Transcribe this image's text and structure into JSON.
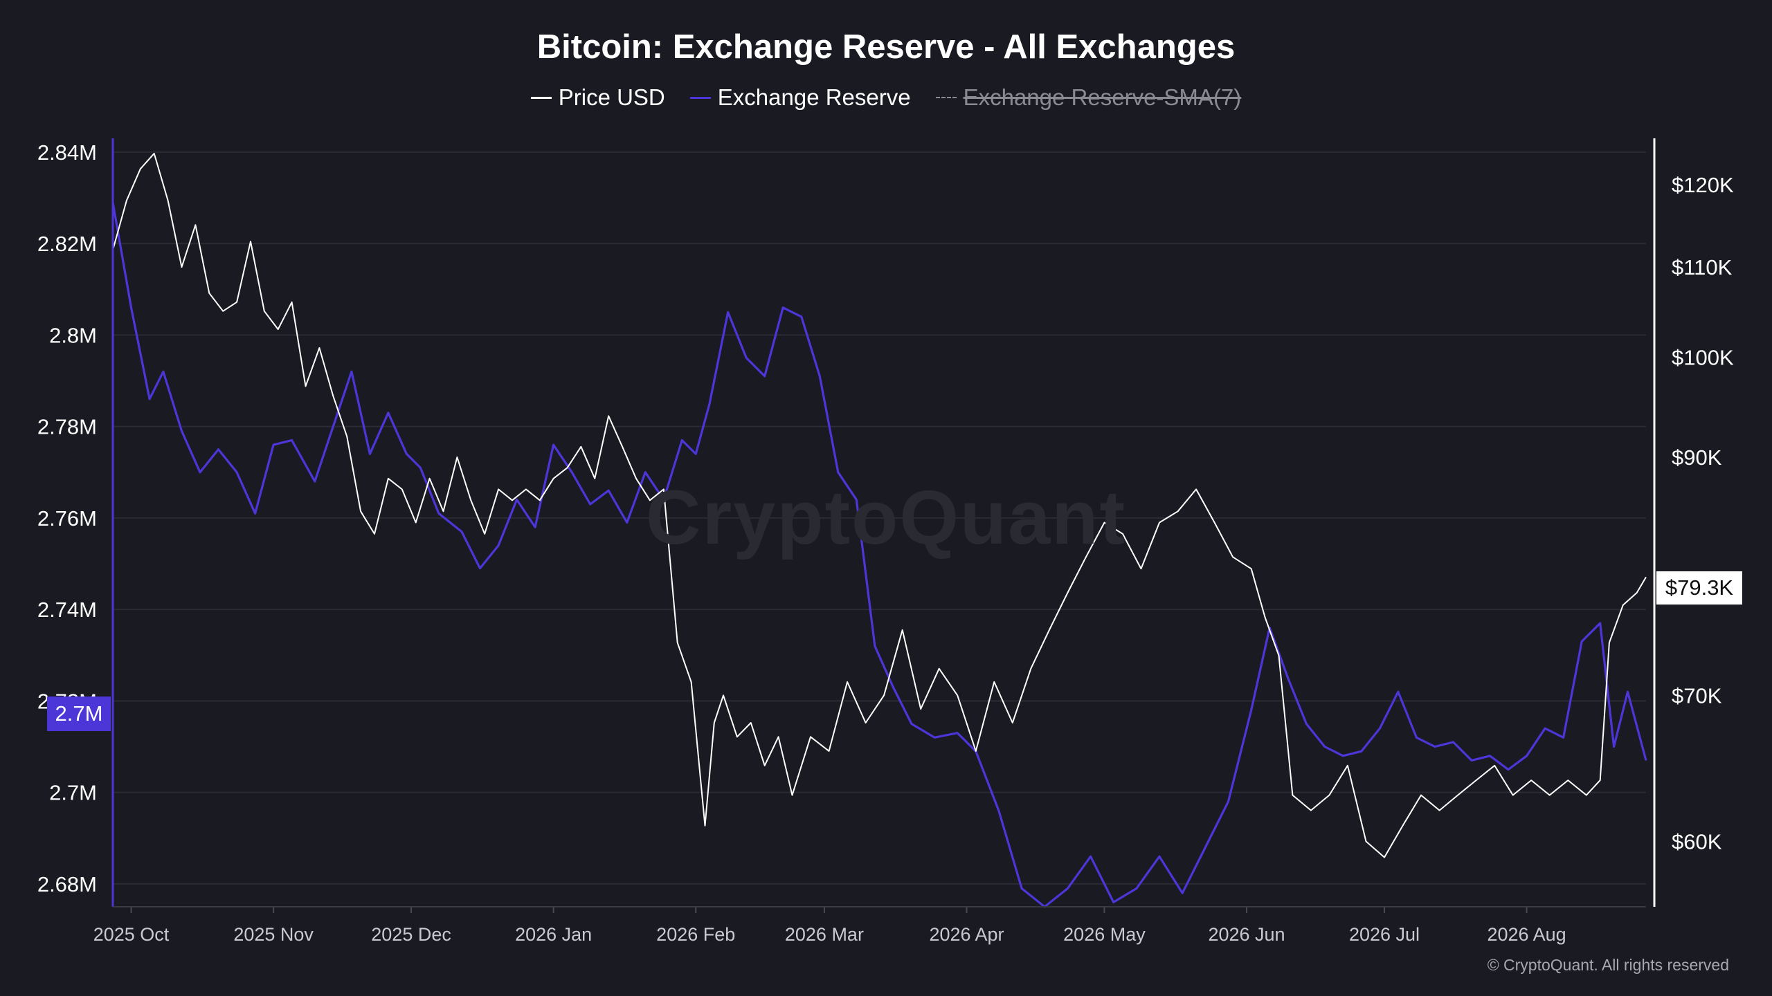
{
  "chart_data": {
    "type": "line",
    "title": "Bitcoin: Exchange Reserve - All Exchanges",
    "legend": [
      {
        "name": "Price USD",
        "color": "#ffffff",
        "active": true
      },
      {
        "name": "Exchange Reserve",
        "color": "#4c36d8",
        "active": true
      },
      {
        "name": "Exchange Reserve-SMA(7)",
        "color": "#8a8a94",
        "active": false
      }
    ],
    "x_tick_labels": [
      "2025 Oct",
      "2025 Nov",
      "2025 Dec",
      "2026 Jan",
      "2026 Feb",
      "2026 Mar",
      "2026 Apr",
      "2026 May",
      "2026 Jun",
      "2026 Jul",
      "2026 Aug"
    ],
    "x_range": [
      "2025-09-27",
      "2026-08-27"
    ],
    "y_left": {
      "tick_values": [
        2680000,
        2700000,
        2720000,
        2740000,
        2760000,
        2780000,
        2800000,
        2820000,
        2840000
      ],
      "tick_labels": [
        "2.68M",
        "2.7M",
        "2.72M",
        "2.74M",
        "2.76M",
        "2.78M",
        "2.8M",
        "2.82M",
        "2.84M"
      ],
      "range": [
        2675000,
        2843000
      ],
      "current_label": "2.7M"
    },
    "y_right": {
      "tick_values": [
        60000,
        70000,
        90000,
        100000,
        110000,
        120000
      ],
      "tick_labels": [
        "$60K",
        "$70K",
        "$90K",
        "$100K",
        "$110K",
        "$120K"
      ],
      "scale": "log",
      "range": [
        56000,
        126000
      ],
      "current_label": "$79.3K"
    },
    "series": [
      {
        "name": "Exchange Reserve",
        "axis": "left",
        "color": "#4c36d8",
        "x": [
          "2025-09-27",
          "2025-10-01",
          "2025-10-05",
          "2025-10-08",
          "2025-10-12",
          "2025-10-16",
          "2025-10-20",
          "2025-10-24",
          "2025-10-28",
          "2025-11-01",
          "2025-11-05",
          "2025-11-10",
          "2025-11-14",
          "2025-11-18",
          "2025-11-22",
          "2025-11-26",
          "2025-11-30",
          "2025-12-03",
          "2025-12-07",
          "2025-12-12",
          "2025-12-16",
          "2025-12-20",
          "2025-12-24",
          "2025-12-28",
          "2026-01-01",
          "2026-01-05",
          "2026-01-09",
          "2026-01-13",
          "2026-01-17",
          "2026-01-21",
          "2026-01-25",
          "2026-01-29",
          "2026-02-01",
          "2026-02-04",
          "2026-02-08",
          "2026-02-12",
          "2026-02-16",
          "2026-02-20",
          "2026-02-24",
          "2026-02-28",
          "2026-03-04",
          "2026-03-08",
          "2026-03-12",
          "2026-03-16",
          "2026-03-20",
          "2026-03-25",
          "2026-03-30",
          "2026-04-03",
          "2026-04-08",
          "2026-04-13",
          "2026-04-18",
          "2026-04-23",
          "2026-04-28",
          "2026-05-03",
          "2026-05-08",
          "2026-05-13",
          "2026-05-18",
          "2026-05-23",
          "2026-05-28",
          "2026-06-02",
          "2026-06-06",
          "2026-06-10",
          "2026-06-14",
          "2026-06-18",
          "2026-06-22",
          "2026-06-26",
          "2026-06-30",
          "2026-07-04",
          "2026-07-08",
          "2026-07-12",
          "2026-07-16",
          "2026-07-20",
          "2026-07-24",
          "2026-07-28",
          "2026-08-01",
          "2026-08-05",
          "2026-08-09",
          "2026-08-13",
          "2026-08-17",
          "2026-08-20",
          "2026-08-23",
          "2026-08-27"
        ],
        "y": [
          2829000,
          2806000,
          2786000,
          2792000,
          2779000,
          2770000,
          2775000,
          2770000,
          2761000,
          2776000,
          2777000,
          2768000,
          2780000,
          2792000,
          2774000,
          2783000,
          2774000,
          2771000,
          2761000,
          2757000,
          2749000,
          2754000,
          2764000,
          2758000,
          2776000,
          2770000,
          2763000,
          2766000,
          2759000,
          2770000,
          2764000,
          2777000,
          2774000,
          2785000,
          2805000,
          2795000,
          2791000,
          2806000,
          2804000,
          2791000,
          2770000,
          2764000,
          2732000,
          2723000,
          2715000,
          2712000,
          2713000,
          2709000,
          2696000,
          2679000,
          2675000,
          2679000,
          2686000,
          2676000,
          2679000,
          2686000,
          2678000,
          2688000,
          2698000,
          2718000,
          2736000,
          2725000,
          2715000,
          2710000,
          2708000,
          2709000,
          2714000,
          2722000,
          2712000,
          2710000,
          2711000,
          2707000,
          2708000,
          2705000,
          2708000,
          2714000,
          2712000,
          2733000,
          2737000,
          2710000,
          2722000,
          2707000
        ]
      },
      {
        "name": "Price USD",
        "axis": "right",
        "color": "#ffffff",
        "x": [
          "2025-09-27",
          "2025-09-30",
          "2025-10-03",
          "2025-10-06",
          "2025-10-09",
          "2025-10-12",
          "2025-10-15",
          "2025-10-18",
          "2025-10-21",
          "2025-10-24",
          "2025-10-27",
          "2025-10-30",
          "2025-11-02",
          "2025-11-05",
          "2025-11-08",
          "2025-11-11",
          "2025-11-14",
          "2025-11-17",
          "2025-11-20",
          "2025-11-23",
          "2025-11-26",
          "2025-11-29",
          "2025-12-02",
          "2025-12-05",
          "2025-12-08",
          "2025-12-11",
          "2025-12-14",
          "2025-12-17",
          "2025-12-20",
          "2025-12-23",
          "2025-12-26",
          "2025-12-29",
          "2026-01-01",
          "2026-01-04",
          "2026-01-07",
          "2026-01-10",
          "2026-01-13",
          "2026-01-16",
          "2026-01-19",
          "2026-01-22",
          "2026-01-25",
          "2026-01-28",
          "2026-01-31",
          "2026-02-03",
          "2026-02-05",
          "2026-02-07",
          "2026-02-10",
          "2026-02-13",
          "2026-02-16",
          "2026-02-19",
          "2026-02-22",
          "2026-02-26",
          "2026-03-02",
          "2026-03-06",
          "2026-03-10",
          "2026-03-14",
          "2026-03-18",
          "2026-03-22",
          "2026-03-26",
          "2026-03-30",
          "2026-04-03",
          "2026-04-07",
          "2026-04-11",
          "2026-04-15",
          "2026-04-19",
          "2026-04-23",
          "2026-04-27",
          "2026-05-01",
          "2026-05-05",
          "2026-05-09",
          "2026-05-13",
          "2026-05-17",
          "2026-05-21",
          "2026-05-25",
          "2026-05-29",
          "2026-06-02",
          "2026-06-05",
          "2026-06-08",
          "2026-06-11",
          "2026-06-15",
          "2026-06-19",
          "2026-06-23",
          "2026-06-27",
          "2026-07-01",
          "2026-07-05",
          "2026-07-09",
          "2026-07-13",
          "2026-07-17",
          "2026-07-21",
          "2026-07-25",
          "2026-07-29",
          "2026-08-02",
          "2026-08-06",
          "2026-08-10",
          "2026-08-14",
          "2026-08-17",
          "2026-08-19",
          "2026-08-22",
          "2026-08-25",
          "2026-08-27"
        ],
        "y": [
          112000,
          118000,
          122000,
          124000,
          118000,
          110000,
          115000,
          107000,
          105000,
          106000,
          113000,
          105000,
          103000,
          106000,
          97000,
          101000,
          96000,
          92000,
          85000,
          83000,
          88000,
          87000,
          84000,
          88000,
          85000,
          90000,
          86000,
          83000,
          87000,
          86000,
          87000,
          86000,
          88000,
          89000,
          91000,
          88000,
          94000,
          91000,
          88000,
          86000,
          87000,
          74000,
          71000,
          61000,
          68000,
          70000,
          67000,
          68000,
          65000,
          67000,
          63000,
          67000,
          66000,
          71000,
          68000,
          70000,
          75000,
          69000,
          72000,
          70000,
          66000,
          71000,
          68000,
          72000,
          75000,
          78000,
          81000,
          84000,
          83000,
          80000,
          84000,
          85000,
          87000,
          84000,
          81000,
          80000,
          76000,
          73000,
          63000,
          62000,
          63000,
          65000,
          60000,
          59000,
          61000,
          63000,
          62000,
          63000,
          64000,
          65000,
          63000,
          64000,
          63000,
          64000,
          63000,
          64000,
          74000,
          77000,
          78000,
          79300
        ]
      }
    ],
    "grid": true
  },
  "watermark": "CryptoQuant",
  "copyright": "© CryptoQuant. All rights reserved"
}
